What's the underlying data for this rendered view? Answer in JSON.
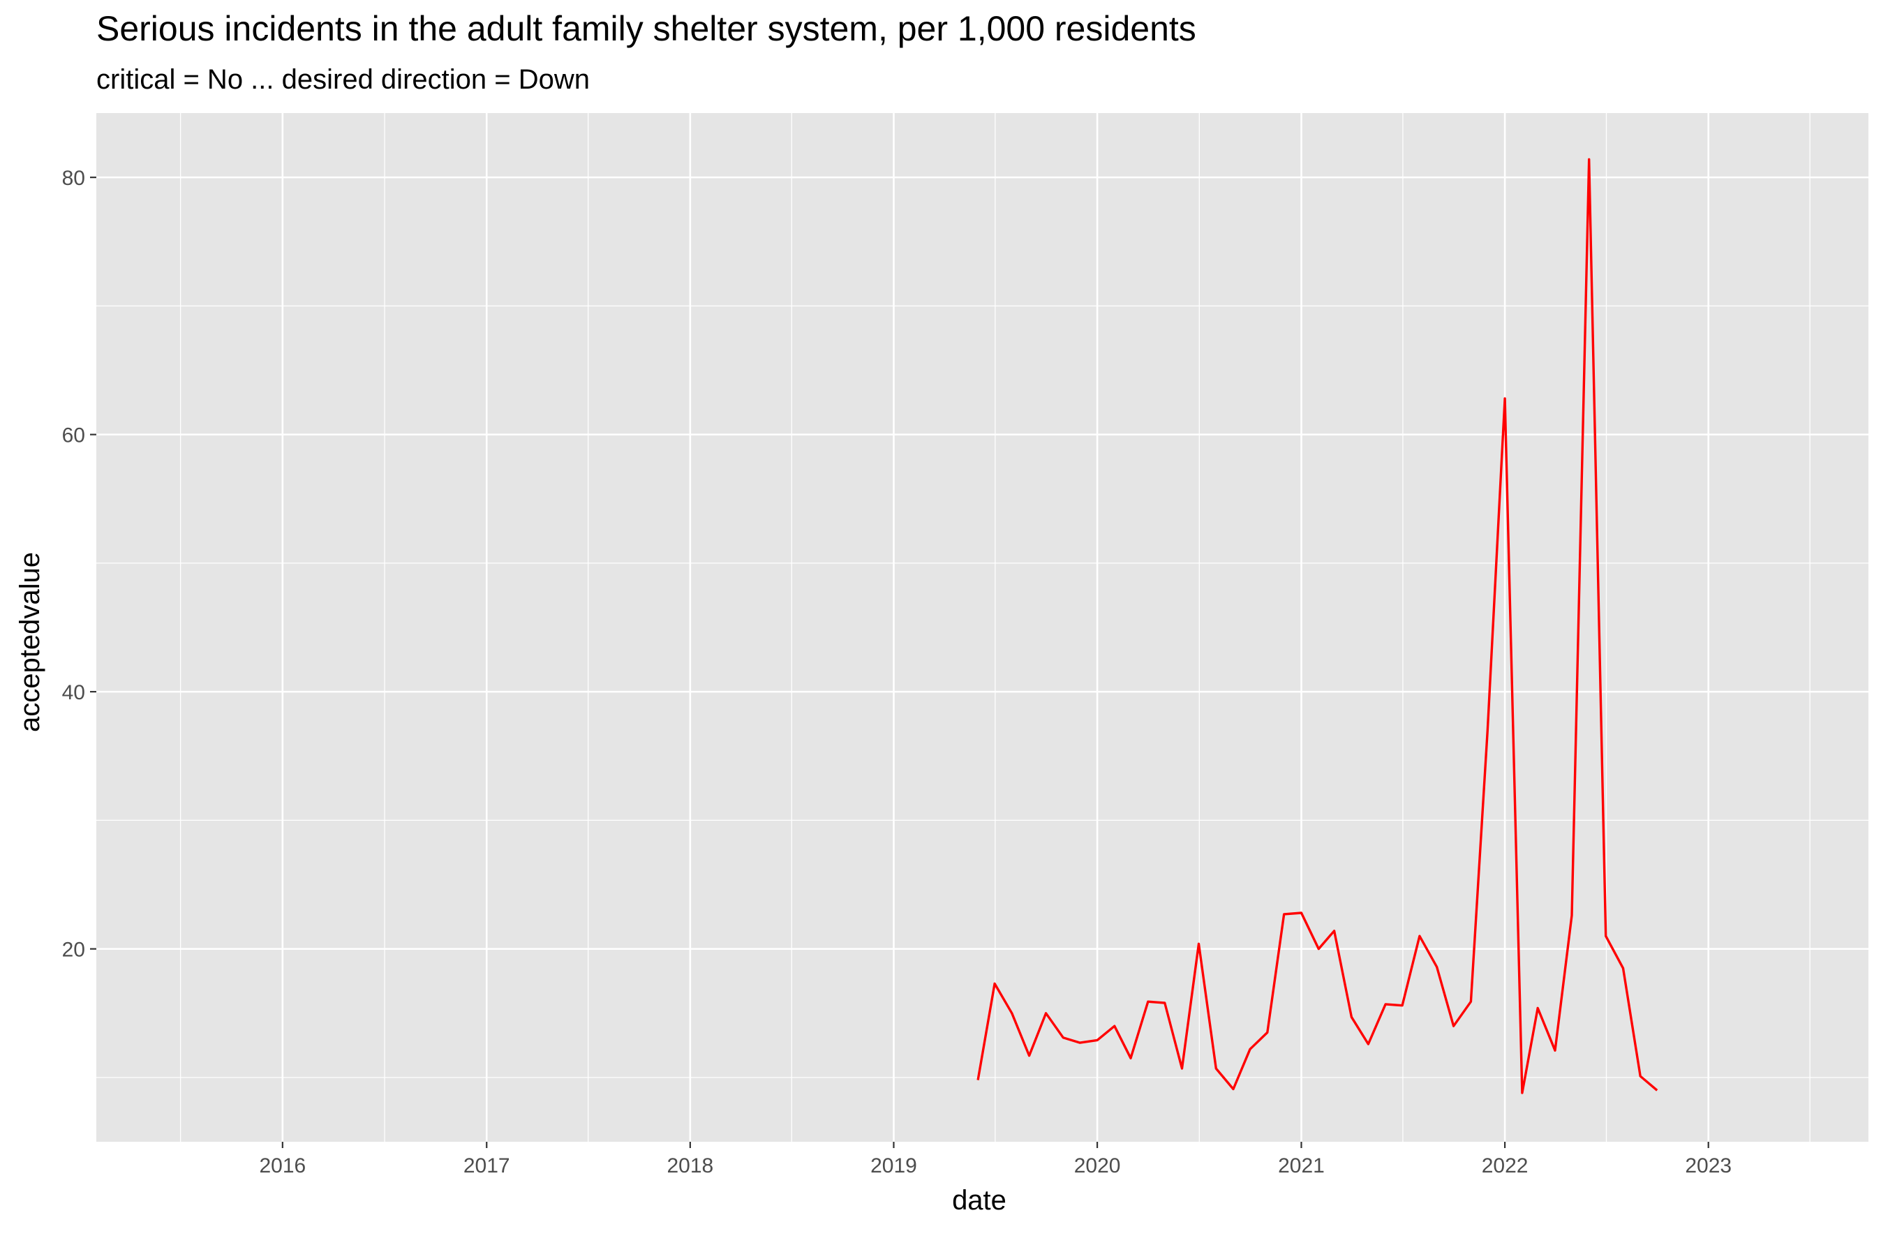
{
  "chart_data": {
    "type": "line",
    "title": "Serious incidents in the adult family shelter system, per 1,000 residents",
    "subtitle": "critical = No ... desired direction = Down",
    "xlabel": "date",
    "ylabel": "acceptedvalue",
    "x_ticks": [
      "2016",
      "2017",
      "2018",
      "2019",
      "2020",
      "2021",
      "2022",
      "2023"
    ],
    "y_ticks": [
      "20",
      "40",
      "60",
      "80"
    ],
    "xlim": [
      "2015-02-01",
      "2023-10-15"
    ],
    "ylim": [
      5,
      85
    ],
    "grid": true,
    "legend": "none",
    "colors": {
      "panel": "#e5e5e5",
      "grid": "#ffffff",
      "line": "#ff0000",
      "text": "#000000",
      "tick_text": "#4d4d4d",
      "tick_mark": "#333333"
    },
    "series": [
      {
        "x": [
          "2019-06-01",
          "2019-07-01",
          "2019-08-01",
          "2019-09-01",
          "2019-10-01",
          "2019-11-01",
          "2019-12-01",
          "2020-01-01",
          "2020-02-01",
          "2020-03-01",
          "2020-04-01",
          "2020-05-01",
          "2020-06-01",
          "2020-07-01",
          "2020-08-01",
          "2020-09-01",
          "2020-10-01",
          "2020-11-01",
          "2020-12-01",
          "2021-01-01",
          "2021-02-01",
          "2021-03-01",
          "2021-04-01",
          "2021-05-01",
          "2021-06-01",
          "2021-07-01",
          "2021-08-01",
          "2021-09-01",
          "2021-10-01",
          "2021-11-01",
          "2021-12-01",
          "2022-01-01",
          "2022-02-01",
          "2022-03-01",
          "2022-04-01",
          "2022-05-01",
          "2022-06-01",
          "2022-07-01",
          "2022-08-01",
          "2022-09-01",
          "2022-10-01"
        ],
        "values": [
          9.8,
          17.3,
          15.0,
          11.7,
          15.0,
          13.1,
          12.7,
          12.9,
          14.0,
          11.5,
          15.9,
          15.8,
          10.7,
          20.4,
          10.7,
          9.1,
          12.2,
          13.5,
          22.7,
          22.8,
          20.0,
          21.4,
          14.7,
          12.6,
          15.7,
          15.6,
          21.0,
          18.6,
          14.0,
          15.9,
          37.0,
          62.8,
          8.8,
          15.4,
          12.1,
          22.6,
          81.4,
          21.0,
          18.5,
          10.1,
          9.0
        ]
      }
    ]
  }
}
